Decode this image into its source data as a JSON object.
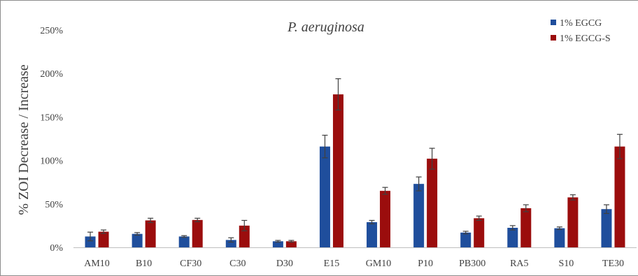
{
  "chart_data": {
    "type": "bar",
    "title": "P. aeruginosa",
    "ylabel": "% ZOI Decrease / Increase",
    "xlabel": "",
    "ylim": [
      0,
      250
    ],
    "yticks": [
      0,
      50,
      100,
      150,
      200,
      250
    ],
    "ytick_labels": [
      "0%",
      "50%",
      "100%",
      "150%",
      "200%",
      "250%"
    ],
    "grid": false,
    "legend_position": "top-right",
    "categories": [
      "AM10",
      "B10",
      "CF30",
      "C30",
      "D30",
      "E15",
      "GM10",
      "P10",
      "PB300",
      "RA5",
      "S10",
      "TE30"
    ],
    "series": [
      {
        "name": "1% EGCG",
        "color": "#1f4e9c",
        "values": [
          12.5,
          15.5,
          12.5,
          8.5,
          7,
          116,
          29,
          73,
          17,
          22.5,
          22,
          44
        ],
        "errors": [
          5,
          1.5,
          1,
          2.5,
          1,
          13,
          2,
          8,
          1.5,
          2.5,
          1.5,
          5
        ]
      },
      {
        "name": "1% EGCG-S",
        "color": "#9b0d0d",
        "values": [
          18,
          31,
          31.5,
          25,
          7,
          176,
          65,
          102,
          33.5,
          45,
          57.5,
          116
        ],
        "errors": [
          2,
          2.5,
          2,
          6,
          1,
          18,
          4,
          12,
          2.5,
          4,
          3,
          14
        ]
      }
    ]
  }
}
